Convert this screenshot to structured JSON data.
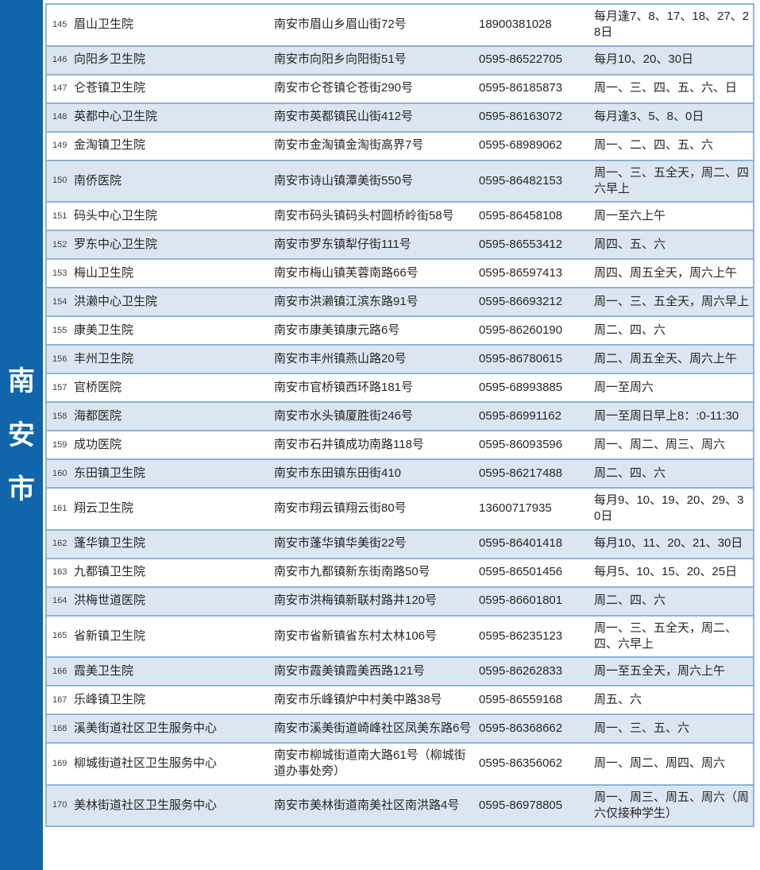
{
  "page": {
    "background_color": "#ffffff",
    "text_color": "#262626"
  },
  "sidebar": {
    "label": "南安市",
    "chars": [
      "南",
      "安",
      "市"
    ],
    "bg_color": "#1166ab",
    "text_color": "#ffffff"
  },
  "table": {
    "border_color": "#8eb4d8",
    "alt_row_color": "#dce6f2",
    "rows": [
      {
        "num": "145",
        "name": "眉山卫生院",
        "address": "南安市眉山乡眉山街72号",
        "phone": "18900381028",
        "schedule": "每月逢7、8、17、18、27、28日"
      },
      {
        "num": "146",
        "name": "向阳乡卫生院",
        "address": "南安市向阳乡向阳街51号",
        "phone": "0595-86522705",
        "schedule": "每月10、20、30日"
      },
      {
        "num": "147",
        "name": "仑苍镇卫生院",
        "address": "南安市仑苍镇仑苍街290号",
        "phone": "0595-86185873",
        "schedule": "周一、三、四、五、六、日"
      },
      {
        "num": "148",
        "name": "英都中心卫生院",
        "address": "南安市英都镇民山街412号",
        "phone": "0595-86163072",
        "schedule": "每月逢3、5、8、0日"
      },
      {
        "num": "149",
        "name": "金淘镇卫生院",
        "address": "南安市金淘镇金淘街高界7号",
        "phone": "0595-68989062",
        "schedule": "周一、二、四、五、六"
      },
      {
        "num": "150",
        "name": "南侨医院",
        "address": "南安市诗山镇潭美街550号",
        "phone": "0595-86482153",
        "schedule": "周一、三、五全天，周二、四六早上"
      },
      {
        "num": "151",
        "name": "码头中心卫生院",
        "address": "南安市码头镇码头村圆桥岭街58号",
        "phone": "0595-86458108",
        "schedule": "周一至六上午"
      },
      {
        "num": "152",
        "name": "罗东中心卫生院",
        "address": "南安市罗东镇犁仔街111号",
        "phone": "0595-86553412",
        "schedule": "周四、五、六"
      },
      {
        "num": "153",
        "name": "梅山卫生院",
        "address": "南安市梅山镇芙蓉南路66号",
        "phone": "0595-86597413",
        "schedule": "周四、周五全天，周六上午"
      },
      {
        "num": "154",
        "name": "洪濑中心卫生院",
        "address": "南安市洪濑镇江滨东路91号",
        "phone": "0595-86693212",
        "schedule": "周一、三、五全天，周六早上"
      },
      {
        "num": "155",
        "name": "康美卫生院",
        "address": "南安市康美镇康元路6号",
        "phone": "0595-86260190",
        "schedule": "周二、四、六"
      },
      {
        "num": "156",
        "name": "丰州卫生院",
        "address": "南安市丰州镇燕山路20号",
        "phone": "0595-86780615",
        "schedule": "周二、周五全天、周六上午"
      },
      {
        "num": "157",
        "name": "官桥医院",
        "address": "南安市官桥镇西环路181号",
        "phone": "0595-68993885",
        "schedule": "周一至周六"
      },
      {
        "num": "158",
        "name": "海都医院",
        "address": "南安市水头镇厦胜街246号",
        "phone": "0595-86991162",
        "schedule": "周一至周日早上8：:0-11:30"
      },
      {
        "num": "159",
        "name": "成功医院",
        "address": "南安市石井镇成功南路118号",
        "phone": "0595-86093596",
        "schedule": "周一、周二、周三、周六"
      },
      {
        "num": "160",
        "name": "东田镇卫生院",
        "address": "南安市东田镇东田街410",
        "phone": "0595-86217488",
        "schedule": "周二、四、六"
      },
      {
        "num": "161",
        "name": "翔云卫生院",
        "address": "南安市翔云镇翔云街80号",
        "phone": "13600717935",
        "schedule": "每月9、10、19、20、29、30日"
      },
      {
        "num": "162",
        "name": "蓬华镇卫生院",
        "address": "南安市蓬华镇华美街22号",
        "phone": "0595-86401418",
        "schedule": "每月10、11、20、21、30日"
      },
      {
        "num": "163",
        "name": "九都镇卫生院",
        "address": "南安市九都镇新东街南路50号",
        "phone": "0595-86501456",
        "schedule": "每月5、10、15、20、25日"
      },
      {
        "num": "164",
        "name": "洪梅世道医院",
        "address": "南安市洪梅镇新联村路井120号",
        "phone": "0595-86601801",
        "schedule": "周二、四、六"
      },
      {
        "num": "165",
        "name": "省新镇卫生院",
        "address": "南安市省新镇省东村太林106号",
        "phone": "0595-86235123",
        "schedule": "周一、三、五全天，周二、四、六早上"
      },
      {
        "num": "166",
        "name": "霞美卫生院",
        "address": "南安市霞美镇霞美西路121号",
        "phone": "0595-86262833",
        "schedule": "周一至五全天，周六上午"
      },
      {
        "num": "167",
        "name": "乐峰镇卫生院",
        "address": "南安市乐峰镇炉中村美中路38号",
        "phone": "0595-86559168",
        "schedule": "周五、六"
      },
      {
        "num": "168",
        "name": "溪美街道社区卫生服务中心",
        "address": "南安市溪美街道崎峰社区凤美东路6号",
        "phone": "0595-86368662",
        "schedule": "周一、三、五、六"
      },
      {
        "num": "169",
        "name": "柳城街道社区卫生服务中心",
        "address": "南安市柳城街道南大路61号（柳城街道办事处旁）",
        "phone": "0595-86356062",
        "schedule": "周一、周二、周四、周六"
      },
      {
        "num": "170",
        "name": "美林街道社区卫生服务中心",
        "address": "南安市美林街道南美社区南洪路4号",
        "phone": "0595-86978805",
        "schedule": "周一、周三、周五、周六（周六仅接种学生）"
      }
    ]
  }
}
